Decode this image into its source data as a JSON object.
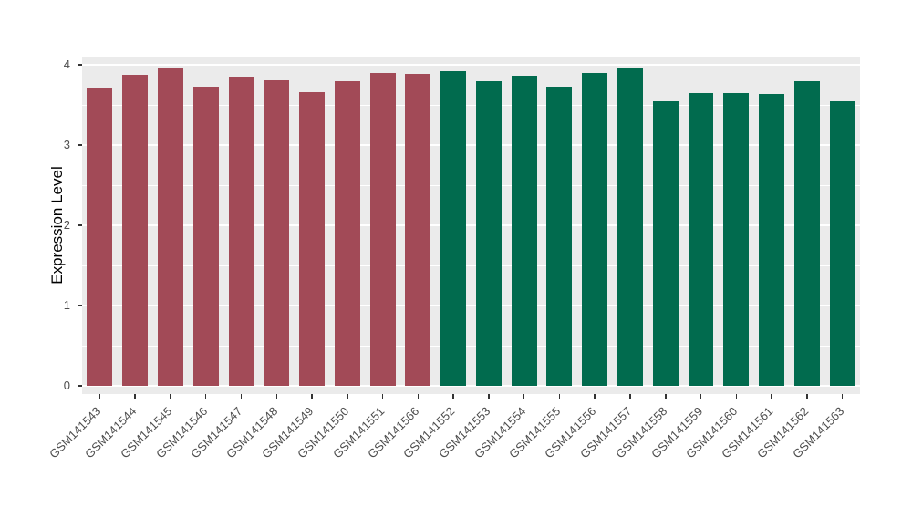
{
  "chart_data": {
    "type": "bar",
    "title": "",
    "xlabel": "",
    "ylabel": "Expression Level",
    "ylim": [
      0,
      4
    ],
    "yticks": [
      0,
      1,
      2,
      3,
      4
    ],
    "minor_ticks": [
      0.5,
      1.5,
      2.5,
      3.5
    ],
    "grid": "on",
    "legend": "none",
    "panel_bg": "#EBEBEB",
    "grid_color": "#FFFFFF",
    "categories": [
      "GSM141543",
      "GSM141544",
      "GSM141545",
      "GSM141546",
      "GSM141547",
      "GSM141548",
      "GSM141549",
      "GSM141550",
      "GSM141551",
      "GSM141566",
      "GSM141552",
      "GSM141553",
      "GSM141554",
      "GSM141555",
      "GSM141556",
      "GSM141557",
      "GSM141558",
      "GSM141559",
      "GSM141560",
      "GSM141561",
      "GSM141562",
      "GSM141563"
    ],
    "values": [
      3.7,
      3.88,
      3.95,
      3.73,
      3.85,
      3.81,
      3.66,
      3.79,
      3.9,
      3.89,
      3.92,
      3.79,
      3.86,
      3.73,
      3.9,
      3.95,
      3.54,
      3.65,
      3.65,
      3.64,
      3.8,
      3.54
    ],
    "groups": [
      0,
      0,
      0,
      0,
      0,
      0,
      0,
      0,
      0,
      0,
      1,
      1,
      1,
      1,
      1,
      1,
      1,
      1,
      1,
      1,
      1,
      1
    ],
    "group_colors": [
      "#A24A57",
      "#016B4E"
    ]
  }
}
